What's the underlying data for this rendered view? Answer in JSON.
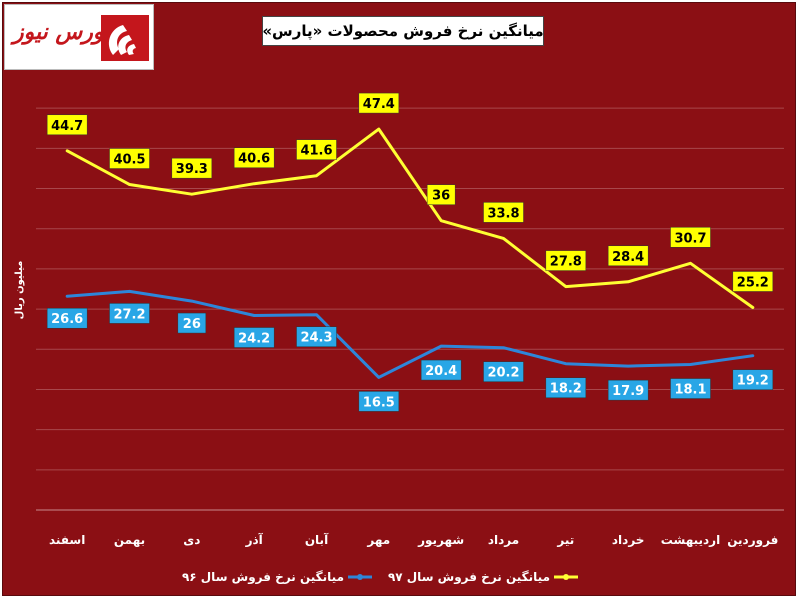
{
  "brand": {
    "logo_text": "بورس نیوز",
    "logo_mark": "logo-icon"
  },
  "chart_data": {
    "type": "line",
    "title": "میانگین نرخ فروش محصولات «پارس»",
    "ylabel": "میلیون ریال",
    "categories": [
      "فروردین",
      "اردیبهشت",
      "خرداد",
      "تیر",
      "مرداد",
      "شهریور",
      "مهر",
      "آبان",
      "آذر",
      "دی",
      "بهمن",
      "اسفند"
    ],
    "ylim": [
      0,
      55
    ],
    "grid": true,
    "legend": "bottom",
    "series": [
      {
        "name": "میانگین نرخ فروش سال ۹۶",
        "color": "#2e86d9",
        "label_bg": "#29a6e6",
        "label_color": "#ffffff",
        "values": [
          19.2,
          18.1,
          17.9,
          18.2,
          20.2,
          20.4,
          16.5,
          24.3,
          24.2,
          26,
          27.2,
          26.6
        ],
        "labels": [
          "19.2",
          "18.1",
          "17.9",
          "18.2",
          "20.2",
          "20.4",
          "16.5",
          "24.3",
          "24.2",
          "26",
          "27.2",
          "26.6"
        ]
      },
      {
        "name": "میانگین نرخ فروش سال ۹۷",
        "color": "#ffff33",
        "label_bg": "#ffff00",
        "label_color": "#000000",
        "values": [
          25.2,
          30.7,
          28.4,
          27.8,
          33.8,
          36,
          47.4,
          41.6,
          40.6,
          39.3,
          40.5,
          44.7
        ],
        "labels": [
          "25.2",
          "30.7",
          "28.4",
          "27.8",
          "33.8",
          "36",
          "47.4",
          "41.6",
          "40.6",
          "39.3",
          "40.5",
          "44.7"
        ]
      }
    ]
  }
}
